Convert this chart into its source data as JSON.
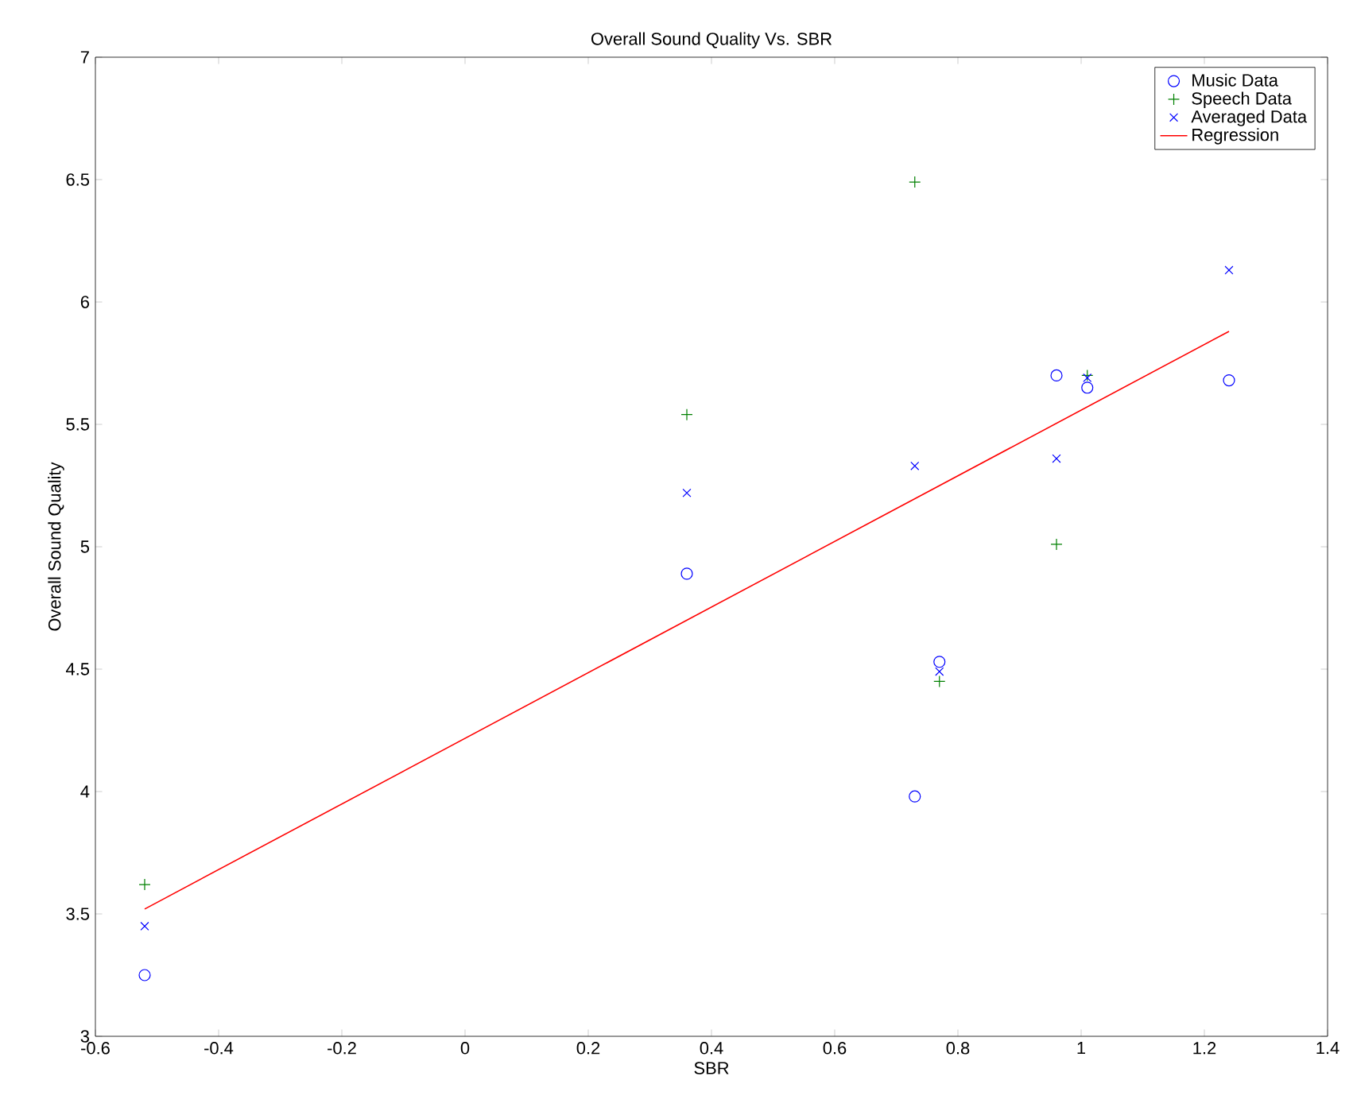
{
  "chart_data": {
    "type": "scatter",
    "title": "Overall Sound Quality Vs. SBR",
    "xlabel": "SBR",
    "ylabel": "Overall Sound Quality",
    "xlim": [
      -0.6,
      1.4
    ],
    "xticks": [
      -0.6,
      -0.4,
      -0.2,
      0,
      0.2,
      0.4,
      0.6,
      0.8,
      1,
      1.2,
      1.4
    ],
    "ylim": [
      3,
      7
    ],
    "yticks": [
      3,
      3.5,
      4,
      4.5,
      5,
      5.5,
      6,
      6.5,
      7
    ],
    "grid": false,
    "legend": "top right",
    "series": [
      {
        "name": "Music Data",
        "marker": "circle",
        "color": "#0000ff",
        "x": [
          -0.52,
          0.36,
          0.73,
          0.77,
          0.96,
          1.01,
          1.24
        ],
        "values": [
          3.25,
          4.89,
          3.98,
          4.53,
          5.7,
          5.65,
          5.68
        ]
      },
      {
        "name": "Speech Data",
        "marker": "plus",
        "color": "#008000",
        "x": [
          -0.52,
          0.36,
          0.73,
          0.77,
          0.96,
          1.01
        ],
        "values": [
          3.62,
          5.54,
          6.49,
          4.45,
          5.01,
          5.7
        ]
      },
      {
        "name": "Averaged Data",
        "marker": "cross",
        "color": "#0000ff",
        "x": [
          -0.52,
          0.36,
          0.73,
          0.77,
          0.96,
          1.01,
          1.24
        ],
        "values": [
          3.45,
          5.22,
          5.33,
          4.49,
          5.36,
          5.69,
          6.13
        ]
      },
      {
        "name": "Regression",
        "type": "line",
        "marker": "none",
        "color": "#ff0000",
        "x": [
          -0.52,
          1.24
        ],
        "values": [
          3.52,
          5.88
        ]
      }
    ]
  }
}
